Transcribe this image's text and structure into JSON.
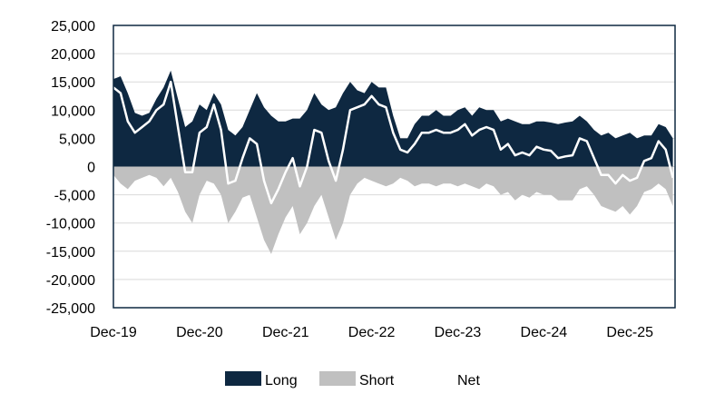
{
  "chart_data": {
    "type": "area",
    "title": "",
    "xlabel": "",
    "ylabel": "",
    "ylim": [
      -25000,
      25000
    ],
    "y_ticks": [
      25000,
      20000,
      15000,
      10000,
      5000,
      0,
      -5000,
      -10000,
      -15000,
      -20000,
      -25000
    ],
    "y_tick_labels": [
      "25,000",
      "20,000",
      "15,000",
      "10,000",
      "5,000",
      "0",
      "-5,000",
      "-10,000",
      "-15,000",
      "-20,000",
      "-25,000"
    ],
    "x_range": [
      "2019-12",
      "2026-06"
    ],
    "x_ticks": [
      "2019-12",
      "2020-12",
      "2021-12",
      "2022-12",
      "2023-12",
      "2024-12",
      "2025-12"
    ],
    "x_tick_labels": [
      "Dec-19",
      "Dec-20",
      "Dec-21",
      "Dec-22",
      "Dec-23",
      "Dec-24",
      "Dec-25"
    ],
    "grid": "horizontal",
    "legend_position": "bottom",
    "x": [
      "2019-12",
      "2020-01",
      "2020-02",
      "2020-03",
      "2020-04",
      "2020-05",
      "2020-06",
      "2020-07",
      "2020-08",
      "2020-09",
      "2020-10",
      "2020-11",
      "2020-12",
      "2021-01",
      "2021-02",
      "2021-03",
      "2021-04",
      "2021-05",
      "2021-06",
      "2021-07",
      "2021-08",
      "2021-09",
      "2021-10",
      "2021-11",
      "2021-12",
      "2022-01",
      "2022-02",
      "2022-03",
      "2022-04",
      "2022-05",
      "2022-06",
      "2022-07",
      "2022-08",
      "2022-09",
      "2022-10",
      "2022-11",
      "2022-12",
      "2023-01",
      "2023-02",
      "2023-03",
      "2023-04",
      "2023-05",
      "2023-06",
      "2023-07",
      "2023-08",
      "2023-09",
      "2023-10",
      "2023-11",
      "2023-12",
      "2024-01",
      "2024-02",
      "2024-03",
      "2024-04",
      "2024-05",
      "2024-06",
      "2024-07",
      "2024-08",
      "2024-09",
      "2024-10",
      "2024-11",
      "2024-12",
      "2025-01",
      "2025-02",
      "2025-03",
      "2025-04",
      "2025-05",
      "2025-06",
      "2025-07",
      "2025-08",
      "2025-09",
      "2025-10",
      "2025-11",
      "2025-12",
      "2026-01",
      "2026-02",
      "2026-03",
      "2026-04",
      "2026-05",
      "2026-06"
    ],
    "series": [
      {
        "name": "Long",
        "color": "#0e2841",
        "values": [
          15500,
          16000,
          13000,
          9500,
          9000,
          9500,
          12000,
          14000,
          17000,
          12000,
          7000,
          8000,
          11000,
          10000,
          13000,
          11000,
          6500,
          5500,
          7000,
          10000,
          13000,
          10500,
          9000,
          8000,
          8000,
          8500,
          8500,
          10000,
          13000,
          11000,
          10000,
          10500,
          13000,
          15000,
          13500,
          13000,
          15000,
          14000,
          14000,
          9000,
          5000,
          5000,
          7500,
          9000,
          9000,
          10000,
          9000,
          9000,
          10000,
          10500,
          9000,
          10500,
          10000,
          10000,
          8000,
          8500,
          8000,
          7500,
          7500,
          8000,
          8000,
          7800,
          7500,
          7800,
          8000,
          9000,
          8000,
          6500,
          5500,
          6000,
          5000,
          5500,
          6000,
          5000,
          5500,
          5500,
          7500,
          7000,
          5000
        ]
      },
      {
        "name": "Short",
        "color": "#c0c0c0",
        "values": [
          -1500,
          -3000,
          -4000,
          -2500,
          -2000,
          -1500,
          -2000,
          -3500,
          -2000,
          -4500,
          -8000,
          -10000,
          -5000,
          -2500,
          -3000,
          -5000,
          -10000,
          -8000,
          -5500,
          -5000,
          -9000,
          -13000,
          -15500,
          -12000,
          -9000,
          -7000,
          -12000,
          -10000,
          -7000,
          -5000,
          -9000,
          -13000,
          -10000,
          -5000,
          -3000,
          -2000,
          -2500,
          -3000,
          -3500,
          -3000,
          -2000,
          -2500,
          -3500,
          -3000,
          -3000,
          -3500,
          -3000,
          -3000,
          -3500,
          -3000,
          -3500,
          -4000,
          -3000,
          -3500,
          -5000,
          -4500,
          -6000,
          -5000,
          -5500,
          -4500,
          -5000,
          -5000,
          -6000,
          -6000,
          -6000,
          -4000,
          -3500,
          -5000,
          -7000,
          -7500,
          -8000,
          -7000,
          -8500,
          -7000,
          -4500,
          -4000,
          -3000,
          -4000,
          -7000
        ]
      },
      {
        "name": "Net",
        "color": "#ffffff",
        "values": [
          14000,
          13000,
          8000,
          6000,
          7000,
          8000,
          10000,
          11000,
          15000,
          7000,
          -1000,
          -1000,
          6000,
          7000,
          11000,
          6500,
          -3000,
          -2500,
          1500,
          5000,
          4000,
          -2500,
          -6500,
          -4000,
          -1000,
          1500,
          -3500,
          0,
          6500,
          6000,
          1000,
          -2500,
          3000,
          10000,
          10500,
          11000,
          12500,
          11000,
          10500,
          6000,
          3000,
          2500,
          4000,
          6000,
          6000,
          6500,
          6000,
          6000,
          6500,
          7500,
          5500,
          6500,
          7000,
          6500,
          3000,
          4000,
          2000,
          2500,
          2000,
          3500,
          3000,
          2800,
          1500,
          1800,
          2000,
          5000,
          4500,
          1500,
          -1500,
          -1500,
          -3000,
          -1500,
          -2500,
          -2000,
          1000,
          1500,
          4500,
          3000,
          -2000
        ]
      }
    ]
  }
}
